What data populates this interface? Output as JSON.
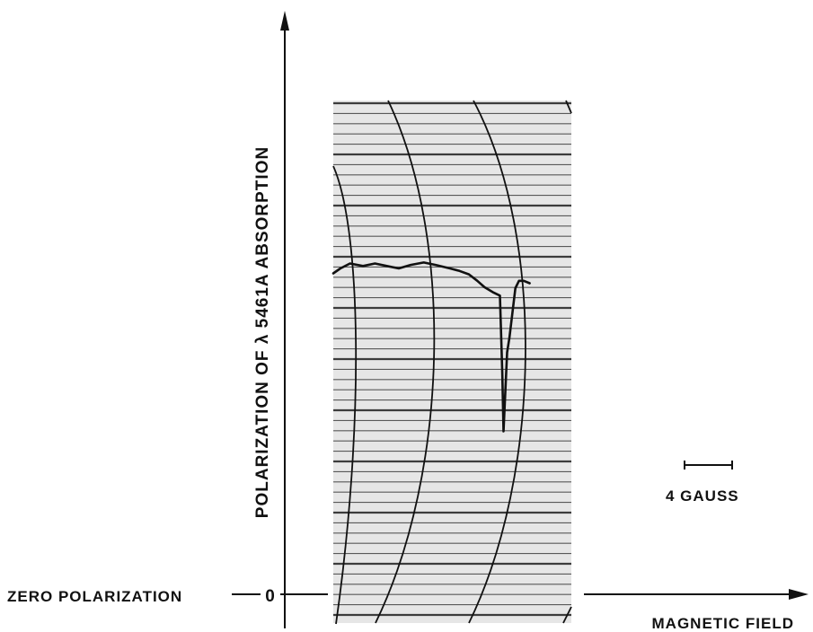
{
  "chart_data": {
    "type": "line",
    "title": "",
    "ylabel": "POLARIZATION OF λ 5461A ABSORPTION",
    "xlabel": "MAGNETIC FIELD",
    "zero_label": "ZERO POLARIZATION",
    "zero_tick": "0",
    "scale_bar_label": "4 GAUSS",
    "scale_bar_gauss": 4,
    "xlim_gauss": [
      0,
      20
    ],
    "ylim_fraction": [
      0,
      1
    ],
    "grid": true,
    "colors": {
      "ink": "#111111",
      "paper": "#e6e6e6",
      "rule": "#2a2a2a"
    },
    "series": [
      {
        "x": [
          0,
          0.6,
          1.4,
          2.5,
          3.5,
          4.5,
          5.5,
          6.5,
          7.6,
          8.6,
          9.8,
          10.6,
          11.4,
          12.1,
          12.7,
          13.4,
          14.0,
          14.2,
          14.3,
          14.45,
          14.6,
          14.8,
          15.3,
          15.6,
          16.0,
          16.5
        ],
        "y": [
          0.65,
          0.66,
          0.67,
          0.665,
          0.67,
          0.665,
          0.66,
          0.667,
          0.672,
          0.667,
          0.66,
          0.655,
          0.648,
          0.635,
          0.622,
          0.612,
          0.605,
          0.45,
          0.33,
          0.41,
          0.49,
          0.52,
          0.62,
          0.635,
          0.635,
          0.63
        ]
      }
    ]
  }
}
